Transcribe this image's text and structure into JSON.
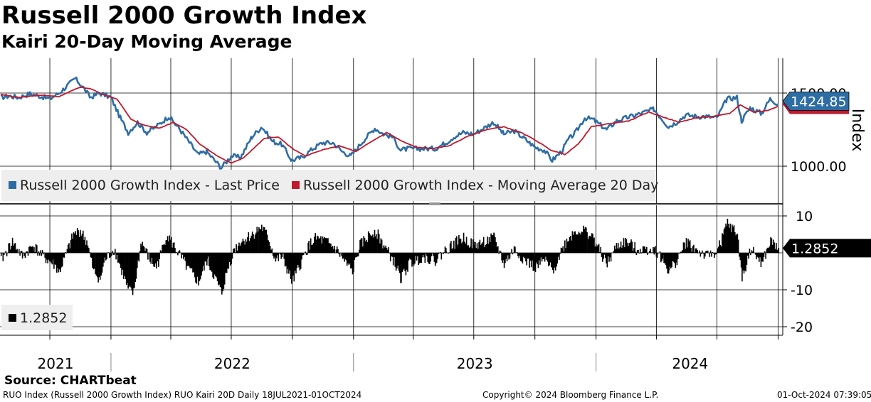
{
  "header": {
    "title": "Russell 2000 Growth Index",
    "subtitle": "Kairi 20-Day Moving Average"
  },
  "footer": {
    "source": "Source: CHARTbeat",
    "description": "RUO Index (Russell 2000 Growth Index) RUO Kairi 20D  Daily 18JUL2021-01OCT2024",
    "copyright": "Copyright© 2024 Bloomberg Finance L.P.",
    "timestamp": "01-Oct-2024 07:39:05"
  },
  "colors": {
    "price": "#2e6da4",
    "moving_average": "#c0192b",
    "kairi": "#000000",
    "legend_bg": "#eeeeee"
  },
  "chart_data": [
    {
      "type": "line",
      "panel": "upper",
      "ylabel": "Index",
      "yticks": [
        "1500.00",
        "1000.00"
      ],
      "ylim": [
        760,
        1800
      ],
      "x_years": [
        "2021",
        "2022",
        "2023",
        "2024"
      ],
      "last_value_label": "1424.85",
      "legend": [
        "Russell 2000 Growth Index - Last Price",
        "Russell 2000 Growth Index - Moving Average 20 Day"
      ],
      "series": [
        {
          "name": "Russell 2000 Growth Index - Last Price",
          "points": [
            [
              "2021-07-19",
              1470
            ],
            [
              "2021-08-01",
              1480
            ],
            [
              "2021-08-15",
              1470
            ],
            [
              "2021-09-01",
              1495
            ],
            [
              "2021-09-15",
              1480
            ],
            [
              "2021-10-01",
              1460
            ],
            [
              "2021-10-15",
              1500
            ],
            [
              "2021-11-01",
              1570
            ],
            [
              "2021-11-08",
              1600
            ],
            [
              "2021-11-20",
              1540
            ],
            [
              "2021-12-01",
              1470
            ],
            [
              "2021-12-15",
              1500
            ],
            [
              "2022-01-01",
              1470
            ],
            [
              "2022-01-15",
              1330
            ],
            [
              "2022-01-27",
              1230
            ],
            [
              "2022-02-10",
              1300
            ],
            [
              "2022-02-24",
              1230
            ],
            [
              "2022-03-10",
              1270
            ],
            [
              "2022-03-29",
              1340
            ],
            [
              "2022-04-15",
              1250
            ],
            [
              "2022-05-01",
              1150
            ],
            [
              "2022-05-12",
              1080
            ],
            [
              "2022-05-25",
              1100
            ],
            [
              "2022-06-16",
              990
            ],
            [
              "2022-07-01",
              1070
            ],
            [
              "2022-07-15",
              1060
            ],
            [
              "2022-08-01",
              1200
            ],
            [
              "2022-08-16",
              1270
            ],
            [
              "2022-09-01",
              1170
            ],
            [
              "2022-09-15",
              1150
            ],
            [
              "2022-09-30",
              1040
            ],
            [
              "2022-10-15",
              1060
            ],
            [
              "2022-11-01",
              1120
            ],
            [
              "2022-11-15",
              1160
            ],
            [
              "2022-12-01",
              1160
            ],
            [
              "2022-12-15",
              1100
            ],
            [
              "2022-12-28",
              1070
            ],
            [
              "2023-01-15",
              1170
            ],
            [
              "2023-02-02",
              1260
            ],
            [
              "2023-02-15",
              1220
            ],
            [
              "2023-03-01",
              1200
            ],
            [
              "2023-03-13",
              1110
            ],
            [
              "2023-03-24",
              1120
            ],
            [
              "2023-04-15",
              1120
            ],
            [
              "2023-05-04",
              1120
            ],
            [
              "2023-05-20",
              1160
            ],
            [
              "2023-06-01",
              1200
            ],
            [
              "2023-06-15",
              1230
            ],
            [
              "2023-07-01",
              1220
            ],
            [
              "2023-07-31",
              1300
            ],
            [
              "2023-08-15",
              1220
            ],
            [
              "2023-08-31",
              1240
            ],
            [
              "2023-09-15",
              1190
            ],
            [
              "2023-10-01",
              1130
            ],
            [
              "2023-10-15",
              1110
            ],
            [
              "2023-10-27",
              1040
            ],
            [
              "2023-11-10",
              1100
            ],
            [
              "2023-11-20",
              1180
            ],
            [
              "2023-12-01",
              1230
            ],
            [
              "2023-12-15",
              1330
            ],
            [
              "2023-12-27",
              1320
            ],
            [
              "2024-01-17",
              1250
            ],
            [
              "2024-02-01",
              1310
            ],
            [
              "2024-02-15",
              1330
            ],
            [
              "2024-03-01",
              1350
            ],
            [
              "2024-03-28",
              1390
            ],
            [
              "2024-04-19",
              1270
            ],
            [
              "2024-05-01",
              1300
            ],
            [
              "2024-05-15",
              1350
            ],
            [
              "2024-06-01",
              1340
            ],
            [
              "2024-06-15",
              1340
            ],
            [
              "2024-07-01",
              1330
            ],
            [
              "2024-07-16",
              1460
            ],
            [
              "2024-07-31",
              1470
            ],
            [
              "2024-08-07",
              1310
            ],
            [
              "2024-08-20",
              1400
            ],
            [
              "2024-09-06",
              1360
            ],
            [
              "2024-09-19",
              1460
            ],
            [
              "2024-10-01",
              1424.85
            ]
          ]
        },
        {
          "name": "Russell 2000 Growth Index - Moving Average 20 Day",
          "points": [
            [
              "2021-07-19",
              1490
            ],
            [
              "2021-08-15",
              1470
            ],
            [
              "2021-09-15",
              1485
            ],
            [
              "2021-10-15",
              1475
            ],
            [
              "2021-11-15",
              1540
            ],
            [
              "2021-12-01",
              1530
            ],
            [
              "2021-12-20",
              1490
            ],
            [
              "2022-01-10",
              1460
            ],
            [
              "2022-01-31",
              1320
            ],
            [
              "2022-02-20",
              1280
            ],
            [
              "2022-03-15",
              1260
            ],
            [
              "2022-04-05",
              1300
            ],
            [
              "2022-04-25",
              1250
            ],
            [
              "2022-05-15",
              1150
            ],
            [
              "2022-06-10",
              1070
            ],
            [
              "2022-07-01",
              1020
            ],
            [
              "2022-07-20",
              1060
            ],
            [
              "2022-08-20",
              1190
            ],
            [
              "2022-09-10",
              1200
            ],
            [
              "2022-10-01",
              1120
            ],
            [
              "2022-10-20",
              1070
            ],
            [
              "2022-11-15",
              1110
            ],
            [
              "2022-12-10",
              1140
            ],
            [
              "2023-01-05",
              1100
            ],
            [
              "2023-01-25",
              1160
            ],
            [
              "2023-02-20",
              1230
            ],
            [
              "2023-03-15",
              1170
            ],
            [
              "2023-04-05",
              1130
            ],
            [
              "2023-05-01",
              1120
            ],
            [
              "2023-05-25",
              1140
            ],
            [
              "2023-06-20",
              1200
            ],
            [
              "2023-07-20",
              1250
            ],
            [
              "2023-08-15",
              1270
            ],
            [
              "2023-09-10",
              1230
            ],
            [
              "2023-10-01",
              1180
            ],
            [
              "2023-10-25",
              1110
            ],
            [
              "2023-11-15",
              1080
            ],
            [
              "2023-12-05",
              1150
            ],
            [
              "2023-12-25",
              1270
            ],
            [
              "2024-01-20",
              1290
            ],
            [
              "2024-02-20",
              1310
            ],
            [
              "2024-03-20",
              1370
            ],
            [
              "2024-04-15",
              1330
            ],
            [
              "2024-05-05",
              1300
            ],
            [
              "2024-05-30",
              1330
            ],
            [
              "2024-06-25",
              1340
            ],
            [
              "2024-07-20",
              1360
            ],
            [
              "2024-08-05",
              1420
            ],
            [
              "2024-08-25",
              1370
            ],
            [
              "2024-09-15",
              1380
            ],
            [
              "2024-10-01",
              1410
            ]
          ]
        }
      ]
    },
    {
      "type": "bar",
      "panel": "lower",
      "yticks": [
        "10",
        "-10",
        "-20"
      ],
      "ylim": [
        -21,
        12.5
      ],
      "last_value_label": "1.2852",
      "legend": [
        "1.2852"
      ],
      "kairi_points": [
        [
          "2021-07-19",
          -2
        ],
        [
          "2021-08-05",
          3
        ],
        [
          "2021-08-20",
          -1
        ],
        [
          "2021-09-05",
          2
        ],
        [
          "2021-09-20",
          -1
        ],
        [
          "2021-10-05",
          -3
        ],
        [
          "2021-10-15",
          -5
        ],
        [
          "2021-11-05",
          5
        ],
        [
          "2021-11-15",
          6
        ],
        [
          "2021-11-25",
          3
        ],
        [
          "2021-12-05",
          -5
        ],
        [
          "2021-12-15",
          -7
        ],
        [
          "2021-12-22",
          -2
        ],
        [
          "2022-01-05",
          1
        ],
        [
          "2022-01-15",
          -4
        ],
        [
          "2022-01-26",
          -10
        ],
        [
          "2022-02-03",
          -11
        ],
        [
          "2022-02-15",
          3
        ],
        [
          "2022-02-28",
          -2
        ],
        [
          "2022-03-10",
          -4
        ],
        [
          "2022-03-25",
          5
        ],
        [
          "2022-04-08",
          1
        ],
        [
          "2022-04-25",
          -4
        ],
        [
          "2022-05-12",
          -8
        ],
        [
          "2022-05-25",
          -2
        ],
        [
          "2022-06-16",
          -11
        ],
        [
          "2022-06-22",
          -6
        ],
        [
          "2022-07-05",
          1
        ],
        [
          "2022-07-15",
          3
        ],
        [
          "2022-08-01",
          5
        ],
        [
          "2022-08-15",
          7
        ],
        [
          "2022-08-25",
          4
        ],
        [
          "2022-09-05",
          -2
        ],
        [
          "2022-09-15",
          -1
        ],
        [
          "2022-09-30",
          -8
        ],
        [
          "2022-10-10",
          -4
        ],
        [
          "2022-10-25",
          2
        ],
        [
          "2022-11-05",
          4
        ],
        [
          "2022-11-20",
          3
        ],
        [
          "2022-12-05",
          1
        ],
        [
          "2022-12-20",
          -3
        ],
        [
          "2022-12-30",
          -5
        ],
        [
          "2023-01-10",
          2
        ],
        [
          "2023-01-25",
          5
        ],
        [
          "2023-02-02",
          6
        ],
        [
          "2023-02-15",
          2
        ],
        [
          "2023-03-01",
          -2
        ],
        [
          "2023-03-13",
          -7
        ],
        [
          "2023-03-25",
          -3
        ],
        [
          "2023-04-15",
          -1
        ],
        [
          "2023-05-04",
          -2
        ],
        [
          "2023-05-20",
          1
        ],
        [
          "2023-06-05",
          3
        ],
        [
          "2023-06-15",
          4
        ],
        [
          "2023-07-01",
          2
        ],
        [
          "2023-07-31",
          4
        ],
        [
          "2023-08-15",
          -3
        ],
        [
          "2023-08-30",
          1
        ],
        [
          "2023-09-15",
          -2
        ],
        [
          "2023-10-01",
          -4
        ],
        [
          "2023-10-15",
          -2
        ],
        [
          "2023-10-27",
          -5
        ],
        [
          "2023-11-10",
          1
        ],
        [
          "2023-11-20",
          4
        ],
        [
          "2023-12-01",
          6
        ],
        [
          "2023-12-15",
          6
        ],
        [
          "2023-12-27",
          4
        ],
        [
          "2024-01-10",
          -1
        ],
        [
          "2024-01-17",
          -3
        ],
        [
          "2024-02-01",
          2
        ],
        [
          "2024-02-15",
          3
        ],
        [
          "2024-03-01",
          1
        ],
        [
          "2024-03-28",
          1
        ],
        [
          "2024-04-10",
          -2
        ],
        [
          "2024-04-19",
          -5
        ],
        [
          "2024-05-01",
          -2
        ],
        [
          "2024-05-15",
          3
        ],
        [
          "2024-06-01",
          0.5
        ],
        [
          "2024-06-15",
          -1
        ],
        [
          "2024-07-01",
          0.5
        ],
        [
          "2024-07-16",
          8
        ],
        [
          "2024-07-31",
          5
        ],
        [
          "2024-08-07",
          -7
        ],
        [
          "2024-08-20",
          1
        ],
        [
          "2024-09-06",
          -3
        ],
        [
          "2024-09-19",
          3
        ],
        [
          "2024-10-01",
          1.2852
        ]
      ]
    }
  ]
}
